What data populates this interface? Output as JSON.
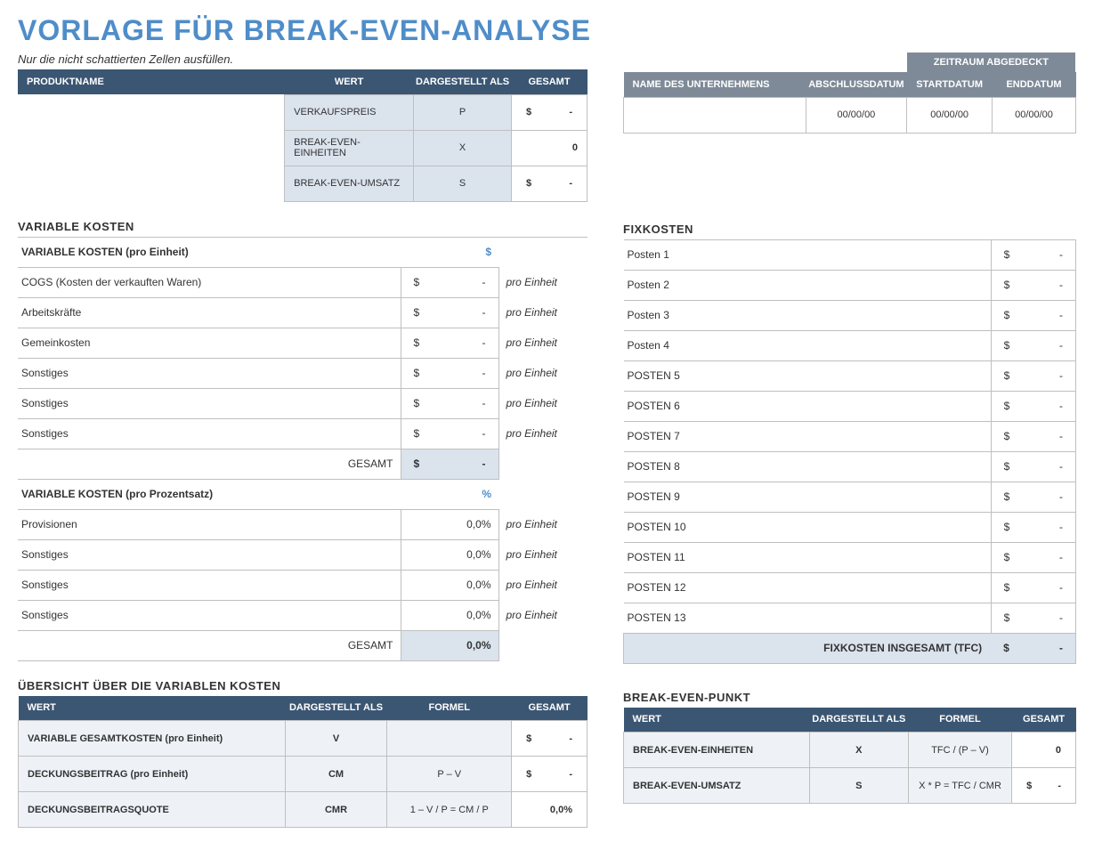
{
  "title": "VORLAGE FÜR BREAK-EVEN-ANALYSE",
  "subtitle": "Nur die nicht schattierten Zellen ausfüllen.",
  "topLeft": {
    "headers": {
      "product": "PRODUKTNAME",
      "wert": "WERT",
      "rep": "DARGESTELLT ALS",
      "total": "GESAMT"
    },
    "rows": [
      {
        "wert": "VERKAUFSPREIS",
        "rep": "P",
        "totalL": "$",
        "totalR": "-"
      },
      {
        "wert": "BREAK-EVEN-EINHEITEN",
        "rep": "X",
        "totalL": "",
        "totalR": "0"
      },
      {
        "wert": "BREAK-EVEN-UMSATZ",
        "rep": "S",
        "totalL": "$",
        "totalR": "-"
      }
    ]
  },
  "topRight": {
    "periodHeader": "ZEITRAUM  ABGEDECKT",
    "headers": {
      "company": "NAME DES UNTERNEHMENS",
      "close": "ABSCHLUSSDATUM",
      "start": "STARTDATUM",
      "end": "ENDDATUM"
    },
    "row": {
      "company": "",
      "close": "00/00/00",
      "start": "00/00/00",
      "end": "00/00/00"
    }
  },
  "varCost": {
    "title": "VARIABLE KOSTEN",
    "perUnitHeader": "VARIABLE KOSTEN (pro Einheit)",
    "perUnitSym": "$",
    "unitLabel": "pro Einheit",
    "perUnitRows": [
      {
        "label": "COGS (Kosten der verkauften Waren)",
        "l": "$",
        "r": "-"
      },
      {
        "label": "Arbeitskräfte",
        "l": "$",
        "r": "-"
      },
      {
        "label": "Gemeinkosten",
        "l": "$",
        "r": "-"
      },
      {
        "label": "Sonstiges",
        "l": "$",
        "r": "-"
      },
      {
        "label": "Sonstiges",
        "l": "$",
        "r": "-"
      },
      {
        "label": "Sonstiges",
        "l": "$",
        "r": "-"
      }
    ],
    "totalLabel": "GESAMT",
    "perUnitTotal": {
      "l": "$",
      "r": "-"
    },
    "perPctHeader": "VARIABLE KOSTEN (pro Prozentsatz)",
    "perPctSym": "%",
    "perPctRows": [
      {
        "label": "Provisionen",
        "v": "0,0%"
      },
      {
        "label": "Sonstiges",
        "v": "0,0%"
      },
      {
        "label": "Sonstiges",
        "v": "0,0%"
      },
      {
        "label": "Sonstiges",
        "v": "0,0%"
      }
    ],
    "perPctTotal": "0,0%"
  },
  "fixCost": {
    "title": "FIXKOSTEN",
    "rows": [
      {
        "label": "Posten 1",
        "l": "$",
        "r": "-"
      },
      {
        "label": "Posten 2",
        "l": "$",
        "r": "-"
      },
      {
        "label": "Posten 3",
        "l": "$",
        "r": "-"
      },
      {
        "label": "Posten 4",
        "l": "$",
        "r": "-"
      },
      {
        "label": "POSTEN 5",
        "l": "$",
        "r": "-"
      },
      {
        "label": "POSTEN 6",
        "l": "$",
        "r": "-"
      },
      {
        "label": "POSTEN 7",
        "l": "$",
        "r": "-"
      },
      {
        "label": "POSTEN 8",
        "l": "$",
        "r": "-"
      },
      {
        "label": "POSTEN 9",
        "l": "$",
        "r": "-"
      },
      {
        "label": "POSTEN 10",
        "l": "$",
        "r": "-"
      },
      {
        "label": "POSTEN 11",
        "l": "$",
        "r": "-"
      },
      {
        "label": "POSTEN 12",
        "l": "$",
        "r": "-"
      },
      {
        "label": "POSTEN 13",
        "l": "$",
        "r": "-"
      }
    ],
    "totalLabel": "FIXKOSTEN INSGESAMT (TFC)",
    "total": {
      "l": "$",
      "r": "-"
    }
  },
  "overview": {
    "title": "ÜBERSICHT ÜBER DIE VARIABLEN KOSTEN",
    "headers": {
      "wert": "WERT",
      "rep": "DARGESTELLT ALS",
      "formel": "FORMEL",
      "total": "GESAMT"
    },
    "rows": [
      {
        "wert": "VARIABLE GESAMTKOSTEN (pro Einheit)",
        "rep": "V",
        "formel": "",
        "tL": "$",
        "tR": "-"
      },
      {
        "wert": "DECKUNGSBEITRAG (pro Einheit)",
        "rep": "CM",
        "formel": "P – V",
        "tL": "$",
        "tR": "-"
      },
      {
        "wert": "DECKUNGSBEITRAGSQUOTE",
        "rep": "CMR",
        "formel": "1 – V / P = CM / P",
        "tL": "",
        "tR": "0,0%"
      }
    ]
  },
  "bep": {
    "title": "BREAK-EVEN-PUNKT",
    "headers": {
      "wert": "WERT",
      "rep": "DARGESTELLT ALS",
      "formel": "FORMEL",
      "total": "GESAMT"
    },
    "rows": [
      {
        "wert": "BREAK-EVEN-EINHEITEN",
        "rep": "X",
        "formel": "TFC / (P – V)",
        "tL": "",
        "tR": "0"
      },
      {
        "wert": "BREAK-EVEN-UMSATZ",
        "rep": "S",
        "formel": "X * P = TFC / CMR",
        "tL": "$",
        "tR": "-"
      }
    ]
  }
}
